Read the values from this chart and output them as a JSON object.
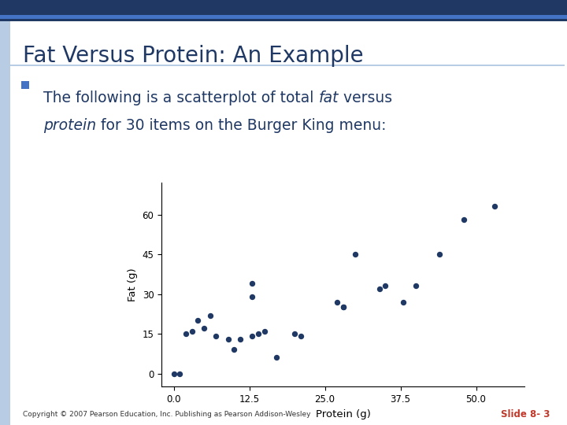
{
  "title": "Fat Versus Protein: An Example",
  "scatter_x": [
    0,
    1,
    2,
    3,
    4,
    5,
    6,
    7,
    9,
    10,
    11,
    13,
    13,
    13,
    14,
    15,
    17,
    20,
    21,
    27,
    28,
    28,
    30,
    34,
    35,
    38,
    40,
    44,
    48,
    53
  ],
  "scatter_y": [
    0,
    0,
    15,
    16,
    20,
    17,
    22,
    14,
    13,
    9,
    13,
    14,
    29,
    34,
    15,
    16,
    6,
    15,
    14,
    27,
    25,
    25,
    45,
    32,
    33,
    27,
    33,
    45,
    58,
    63
  ],
  "xlabel": "Protein (g)",
  "ylabel": "Fat (g)",
  "dot_color": "#1f3864",
  "background_color": "#ffffff",
  "title_color": "#1f3864",
  "text_color": "#1f3864",
  "footer_text": "Copyright © 2007 Pearson Education, Inc. Publishing as Pearson Addison-Wesley",
  "slide_text": "Slide 8- 3",
  "slide_color": "#c0392b",
  "accent_dark": "#1f3864",
  "accent_light": "#4472c4",
  "xlim": [
    -2,
    58
  ],
  "ylim": [
    -5,
    72
  ],
  "xticks": [
    0.0,
    12.5,
    25.0,
    37.5,
    50.0
  ],
  "yticks": [
    0,
    15,
    30,
    45,
    60
  ],
  "bullet_color": "#4472c4",
  "line1_normal1": "The following is a scatterplot of total ",
  "line1_italic": "fat",
  "line1_normal2": " versus",
  "line2_italic": "protein",
  "line2_normal": " for 30 items on the Burger King menu:"
}
